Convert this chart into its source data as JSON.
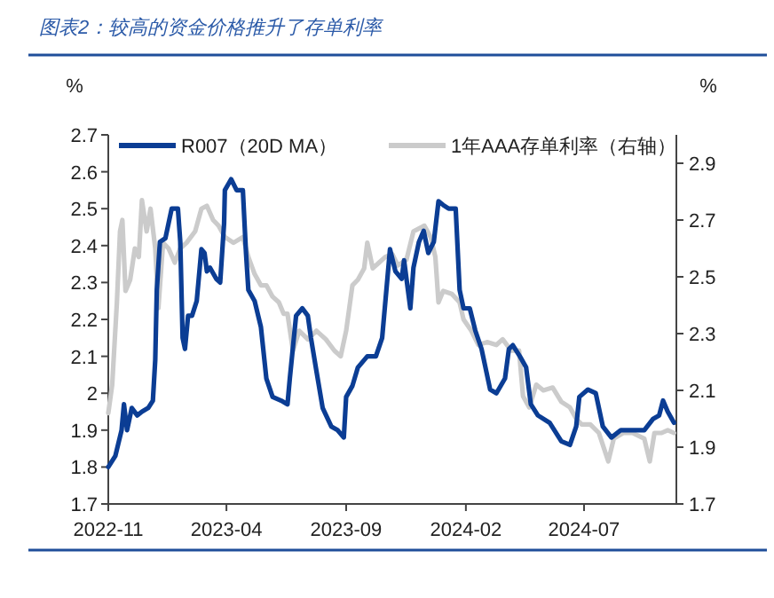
{
  "chart_data": {
    "type": "line",
    "title": "图表2：较高的资金价格推升了存单利率",
    "ylabel": "%",
    "y2label": "%",
    "xlim": [
      "2022-11-01",
      "2024-10-27"
    ],
    "xticks": [
      {
        "value": "2022-11-01",
        "label": "2022-11"
      },
      {
        "value": "2023-04-01",
        "label": "2023-04"
      },
      {
        "value": "2023-09-01",
        "label": "2023-09"
      },
      {
        "value": "2024-02-01",
        "label": "2024-02"
      },
      {
        "value": "2024-07-01",
        "label": "2024-07"
      }
    ],
    "ylim": [
      1.7,
      2.7
    ],
    "yticks": [
      1.7,
      1.8,
      1.9,
      {
        "value": 2,
        "label": "2"
      },
      2.1,
      2.2,
      2.3,
      2.4,
      2.5,
      2.6,
      2.7
    ],
    "y2lim": [
      1.7,
      3.0
    ],
    "y2ticks": [
      1.7,
      1.9,
      2.1,
      2.3,
      2.5,
      2.7,
      2.9
    ],
    "legend": "top",
    "grid": false,
    "marker": "none",
    "line_style": "solid",
    "series": [
      {
        "name": "R007（20D MA）",
        "color": "#0b3d94",
        "x": [
          "2022-11-01",
          "2022-11-10",
          "2022-11-18",
          "2022-11-21",
          "2022-11-25",
          "2022-12-01",
          "2022-12-08",
          "2022-12-14",
          "2022-12-22",
          "2022-12-28",
          "2022-12-31",
          "2023-01-02",
          "2023-01-06",
          "2023-01-13",
          "2023-01-17",
          "2023-01-21",
          "2023-01-29",
          "2023-02-01",
          "2023-02-04",
          "2023-02-07",
          "2023-02-11",
          "2023-02-16",
          "2023-02-22",
          "2023-02-28",
          "2023-03-04",
          "2023-03-07",
          "2023-03-11",
          "2023-03-19",
          "2023-03-24",
          "2023-03-29",
          "2023-03-30",
          "2023-04-07",
          "2023-04-14",
          "2023-04-22",
          "2023-04-26",
          "2023-04-29",
          "2023-05-07",
          "2023-05-15",
          "2023-05-22",
          "2023-05-30",
          "2023-06-10",
          "2023-06-18",
          "2023-06-21",
          "2023-06-29",
          "2023-07-07",
          "2023-07-14",
          "2023-07-18",
          "2023-07-25",
          "2023-08-02",
          "2023-08-13",
          "2023-08-21",
          "2023-08-29",
          "2023-09-01",
          "2023-09-09",
          "2023-09-16",
          "2023-09-28",
          "2023-10-09",
          "2023-10-17",
          "2023-10-27",
          "2023-11-03",
          "2023-11-11",
          "2023-11-14",
          "2023-11-22",
          "2023-11-26",
          "2023-12-03",
          "2023-12-09",
          "2023-12-15",
          "2023-12-22",
          "2023-12-28",
          "2024-01-03",
          "2024-01-10",
          "2024-01-19",
          "2024-01-24",
          "2024-01-29",
          "2024-02-06",
          "2024-02-13",
          "2024-02-21",
          "2024-03-03",
          "2024-03-11",
          "2024-03-22",
          "2024-03-27",
          "2024-04-01",
          "2024-04-10",
          "2024-04-18",
          "2024-04-24",
          "2024-05-03",
          "2024-05-18",
          "2024-06-02",
          "2024-06-13",
          "2024-06-21",
          "2024-06-25",
          "2024-07-06",
          "2024-07-16",
          "2024-07-25",
          "2024-08-05",
          "2024-08-17",
          "2024-09-01",
          "2024-09-16",
          "2024-09-27",
          "2024-10-05",
          "2024-10-10",
          "2024-10-16",
          "2024-10-24"
        ],
        "values": [
          1.8,
          1.83,
          1.9,
          1.97,
          1.9,
          1.96,
          1.94,
          1.95,
          1.96,
          1.98,
          2.09,
          2.28,
          2.41,
          2.42,
          2.46,
          2.5,
          2.5,
          2.41,
          2.15,
          2.12,
          2.21,
          2.21,
          2.25,
          2.39,
          2.38,
          2.33,
          2.34,
          2.31,
          2.3,
          2.46,
          2.55,
          2.58,
          2.55,
          2.55,
          2.38,
          2.28,
          2.25,
          2.18,
          2.04,
          1.99,
          1.98,
          1.97,
          2.04,
          2.21,
          2.23,
          2.21,
          2.15,
          2.06,
          1.96,
          1.91,
          1.9,
          1.88,
          1.99,
          2.02,
          2.07,
          2.1,
          2.1,
          2.15,
          2.39,
          2.33,
          2.31,
          2.36,
          2.23,
          2.34,
          2.41,
          2.44,
          2.38,
          2.41,
          2.52,
          2.51,
          2.5,
          2.5,
          2.28,
          2.23,
          2.23,
          2.17,
          2.12,
          2.01,
          2.0,
          2.04,
          2.12,
          2.13,
          2.1,
          2.07,
          1.97,
          1.94,
          1.92,
          1.87,
          1.86,
          1.91,
          1.99,
          2.01,
          2.0,
          1.91,
          1.88,
          1.9,
          1.9,
          1.9,
          1.93,
          1.94,
          1.98,
          1.95,
          1.92
        ]
      },
      {
        "name": "1年AAA存单利率（右轴）",
        "color": "#cbcbcb",
        "axis": "y2",
        "x": [
          "2022-11-01",
          "2022-11-06",
          "2022-11-12",
          "2022-11-16",
          "2022-11-19",
          "2022-11-23",
          "2022-11-29",
          "2022-12-05",
          "2022-12-10",
          "2022-12-14",
          "2022-12-20",
          "2022-12-25",
          "2022-12-31",
          "2023-01-04",
          "2023-01-10",
          "2023-01-17",
          "2023-01-25",
          "2023-02-01",
          "2023-02-09",
          "2023-02-20",
          "2023-02-28",
          "2023-03-07",
          "2023-03-15",
          "2023-03-22",
          "2023-03-30",
          "2023-04-10",
          "2023-04-22",
          "2023-04-29",
          "2023-05-07",
          "2023-05-15",
          "2023-05-22",
          "2023-05-30",
          "2023-06-07",
          "2023-06-13",
          "2023-06-18",
          "2023-06-25",
          "2023-07-03",
          "2023-07-14",
          "2023-07-25",
          "2023-08-06",
          "2023-08-17",
          "2023-08-25",
          "2023-09-01",
          "2023-09-09",
          "2023-09-16",
          "2023-09-24",
          "2023-09-28",
          "2023-10-05",
          "2023-10-13",
          "2023-10-21",
          "2023-10-30",
          "2023-11-06",
          "2023-11-17",
          "2023-11-26",
          "2023-12-03",
          "2023-12-10",
          "2023-12-18",
          "2023-12-24",
          "2023-12-28",
          "2024-01-03",
          "2024-01-14",
          "2024-01-24",
          "2024-01-29",
          "2024-02-08",
          "2024-02-17",
          "2024-02-28",
          "2024-03-11",
          "2024-03-19",
          "2024-03-30",
          "2024-04-09",
          "2024-04-14",
          "2024-04-22",
          "2024-05-01",
          "2024-05-10",
          "2024-05-22",
          "2024-06-02",
          "2024-06-13",
          "2024-06-21",
          "2024-06-28",
          "2024-07-09",
          "2024-07-20",
          "2024-08-01",
          "2024-08-08",
          "2024-08-20",
          "2024-09-01",
          "2024-09-16",
          "2024-09-23",
          "2024-09-29",
          "2024-10-08",
          "2024-10-16",
          "2024-10-24"
        ],
        "values": [
          2.02,
          2.12,
          2.41,
          2.66,
          2.7,
          2.45,
          2.49,
          2.6,
          2.57,
          2.77,
          2.66,
          2.74,
          2.6,
          2.39,
          2.62,
          2.6,
          2.55,
          2.6,
          2.62,
          2.66,
          2.74,
          2.75,
          2.7,
          2.68,
          2.64,
          2.62,
          2.64,
          2.57,
          2.51,
          2.47,
          2.47,
          2.43,
          2.41,
          2.37,
          2.37,
          2.24,
          2.31,
          2.28,
          2.31,
          2.28,
          2.24,
          2.22,
          2.31,
          2.47,
          2.49,
          2.53,
          2.62,
          2.53,
          2.55,
          2.57,
          2.58,
          2.54,
          2.56,
          2.66,
          2.67,
          2.68,
          2.64,
          2.57,
          2.41,
          2.45,
          2.44,
          2.41,
          2.35,
          2.31,
          2.26,
          2.27,
          2.26,
          2.28,
          2.24,
          2.24,
          2.08,
          2.04,
          2.12,
          2.1,
          2.11,
          2.06,
          2.04,
          2.0,
          1.98,
          1.98,
          1.95,
          1.85,
          1.93,
          1.95,
          1.95,
          1.93,
          1.85,
          1.95,
          1.95,
          1.96,
          1.95
        ]
      }
    ]
  }
}
